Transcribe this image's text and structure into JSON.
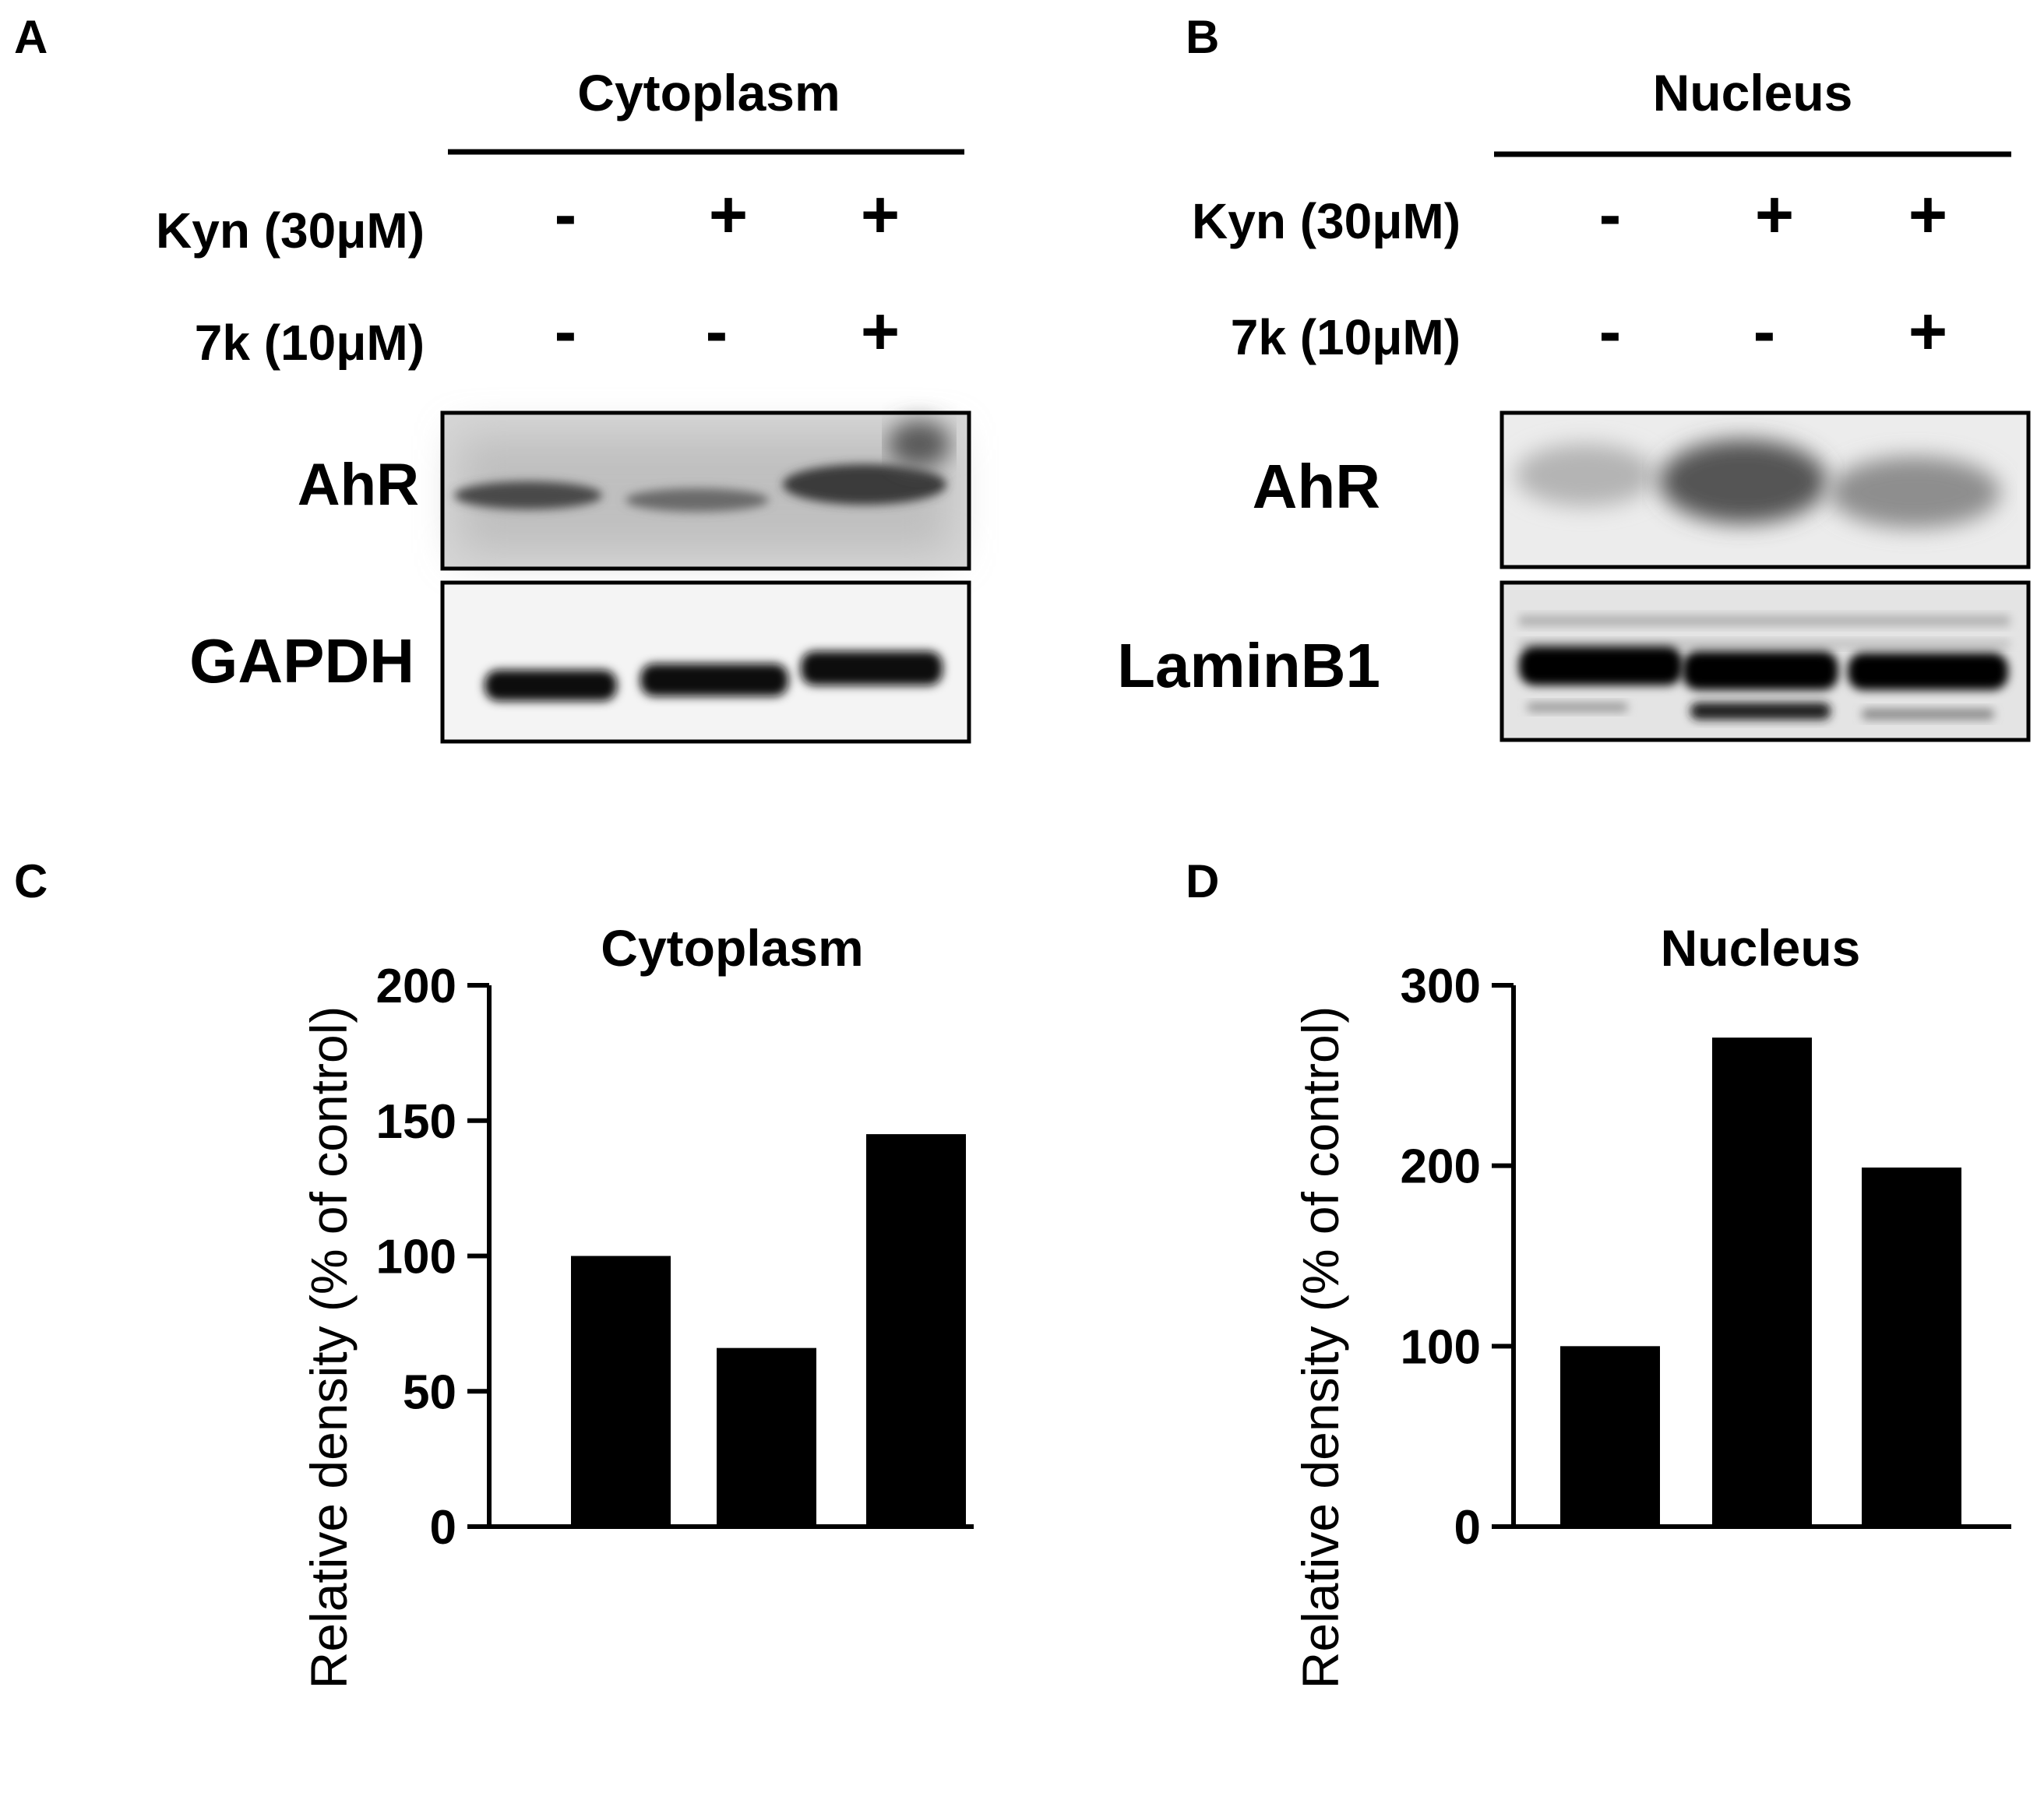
{
  "panels": {
    "a": {
      "letter": "A",
      "title": "Cytoplasm",
      "row1": {
        "label": "Kyn (30μM)",
        "signs": [
          "-",
          "+",
          "+"
        ]
      },
      "row2": {
        "label": "7k (10μM)",
        "signs": [
          "-",
          "-",
          "+"
        ]
      },
      "blot1": {
        "label": "AhR"
      },
      "blot2": {
        "label": "GAPDH"
      }
    },
    "b": {
      "letter": "B",
      "title": "Nucleus",
      "row1": {
        "label": "Kyn (30μM)",
        "signs": [
          "-",
          "+",
          "+"
        ]
      },
      "row2": {
        "label": "7k (10μM)",
        "signs": [
          "-",
          "-",
          "+"
        ]
      },
      "blot1": {
        "label": "AhR"
      },
      "blot2": {
        "label": "LaminB1"
      }
    },
    "c": {
      "letter": "C"
    },
    "d": {
      "letter": "D"
    }
  },
  "chart_data": [
    {
      "type": "bar",
      "title": "Cytoplasm",
      "ylabel": "Relative density (% of control)",
      "xlabel": "",
      "values": [
        100,
        66,
        145
      ],
      "ylim": [
        0,
        200
      ],
      "yticks": [
        "0",
        "50",
        "100",
        "150",
        "200"
      ],
      "bar_color": "#000000"
    },
    {
      "type": "bar",
      "title": "Nucleus",
      "ylabel": "Relative density (% of control)",
      "xlabel": "",
      "values": [
        100,
        271,
        199
      ],
      "ylim": [
        0,
        300
      ],
      "yticks": [
        "0",
        "100",
        "200",
        "300"
      ],
      "bar_color": "#000000"
    }
  ]
}
